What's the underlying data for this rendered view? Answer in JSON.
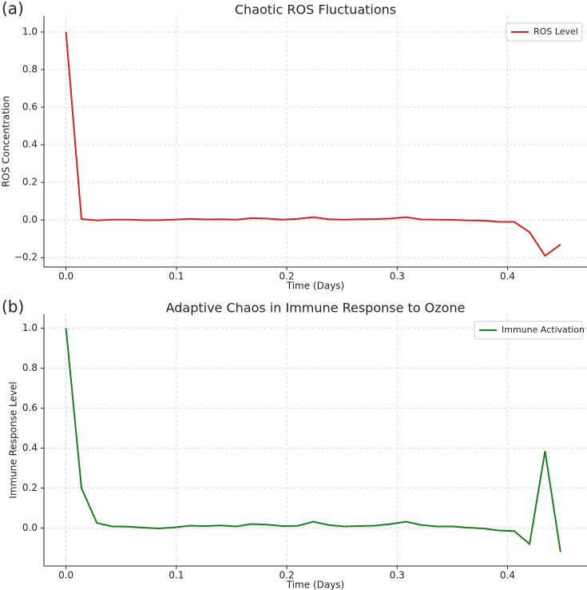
{
  "chart_data": [
    {
      "type": "line",
      "panel_label": "(a)",
      "title": "Chaotic ROS Fluctuations",
      "x_label": "Time (Days)",
      "y_label": "ROS Concentration",
      "x": [
        0,
        0.014,
        0.028,
        0.042,
        0.056,
        0.07,
        0.084,
        0.098,
        0.112,
        0.126,
        0.14,
        0.154,
        0.168,
        0.182,
        0.196,
        0.21,
        0.224,
        0.238,
        0.252,
        0.266,
        0.28,
        0.294,
        0.308,
        0.322,
        0.336,
        0.35,
        0.364,
        0.378,
        0.392,
        0.406,
        0.42,
        0.434,
        0.448
      ],
      "series": [
        {
          "name": "ROS Level",
          "color": "#d62020",
          "values": [
            1.0,
            0.005,
            -0.002,
            0.002,
            0.002,
            -0.001,
            -0.001,
            0.002,
            0.006,
            0.003,
            0.004,
            0.002,
            0.01,
            0.008,
            0.002,
            0.006,
            0.015,
            0.004,
            0.002,
            0.004,
            0.005,
            0.008,
            0.015,
            0.003,
            0.002,
            0.001,
            -0.002,
            -0.003,
            -0.01,
            -0.01,
            -0.065,
            -0.19,
            -0.13
          ]
        }
      ],
      "xlim": [
        -0.02,
        0.472
      ],
      "ylim": [
        -0.25,
        1.085
      ],
      "xticks": [
        {
          "value": 0,
          "label": "0.0"
        },
        0.1,
        0.2,
        0.3,
        0.4
      ],
      "yticks": [
        {
          "value": -0.2,
          "label": "−0.2"
        },
        {
          "value": 0,
          "label": "0.0"
        },
        0.2,
        0.4,
        0.6,
        0.8,
        {
          "value": 1,
          "label": "1.0"
        }
      ],
      "grid": true,
      "legend": "upper right"
    },
    {
      "type": "line",
      "panel_label": "(b)",
      "title": "Adaptive Chaos in Immune Response to Ozone",
      "x_label": "Time (Days)",
      "y_label": "Immune Response Level",
      "x": [
        0,
        0.014,
        0.028,
        0.042,
        0.056,
        0.07,
        0.084,
        0.098,
        0.112,
        0.126,
        0.14,
        0.154,
        0.168,
        0.182,
        0.196,
        0.21,
        0.224,
        0.238,
        0.252,
        0.266,
        0.28,
        0.294,
        0.308,
        0.322,
        0.336,
        0.35,
        0.364,
        0.378,
        0.392,
        0.406,
        0.42,
        0.434,
        0.448
      ],
      "series": [
        {
          "name": "Immune Activation",
          "color": "#1a7f1a",
          "values": [
            1.0,
            0.2,
            0.025,
            0.008,
            0.007,
            0.002,
            -0.002,
            0.003,
            0.012,
            0.01,
            0.013,
            0.008,
            0.02,
            0.017,
            0.01,
            0.011,
            0.032,
            0.015,
            0.008,
            0.01,
            0.012,
            0.02,
            0.032,
            0.015,
            0.008,
            0.008,
            0.002,
            -0.002,
            -0.012,
            -0.015,
            -0.08,
            0.385,
            -0.12
          ]
        }
      ],
      "xlim": [
        -0.02,
        0.472
      ],
      "ylim": [
        -0.19,
        1.07
      ],
      "xticks": [
        {
          "value": 0,
          "label": "0.0"
        },
        0.1,
        0.2,
        0.3,
        0.4
      ],
      "yticks": [
        {
          "value": 0,
          "label": "0.0"
        },
        0.2,
        0.4,
        0.6,
        0.8,
        {
          "value": 1,
          "label": "1.0"
        }
      ],
      "grid": true,
      "legend": "upper right"
    }
  ]
}
